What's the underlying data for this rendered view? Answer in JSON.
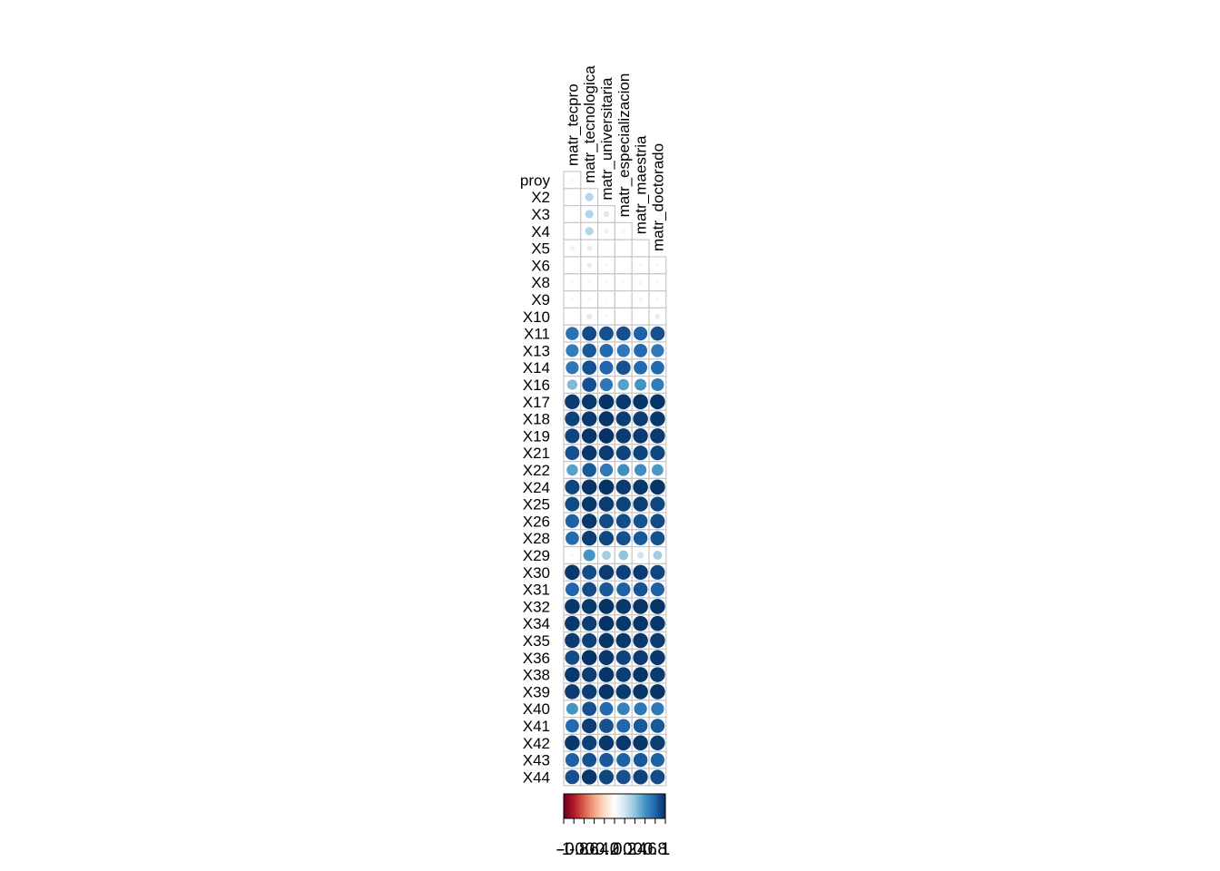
{
  "chart_data": {
    "type": "heatmap",
    "subtype": "correlation-circle",
    "columns": [
      "matr_tecpro",
      "matr_tecnologica",
      "matr_universitaria",
      "matr_especializacion",
      "matr_maestria",
      "matr_doctorado"
    ],
    "rows": [
      "proy",
      "X2",
      "X3",
      "X4",
      "X5",
      "X6",
      "X8",
      "X9",
      "X10",
      "X11",
      "X13",
      "X14",
      "X16",
      "X17",
      "X18",
      "X19",
      "X21",
      "X22",
      "X24",
      "X25",
      "X26",
      "X28",
      "X29",
      "X30",
      "X31",
      "X32",
      "X34",
      "X35",
      "X36",
      "X38",
      "X39",
      "X40",
      "X41",
      "X42",
      "X43",
      "X44"
    ],
    "triangle_rows": 5,
    "values": [
      [
        0.05,
        null,
        null,
        null,
        null,
        null
      ],
      [
        0.0,
        0.3,
        null,
        null,
        null,
        null
      ],
      [
        0.0,
        0.3,
        0.15,
        null,
        null,
        null
      ],
      [
        -0.02,
        0.3,
        0.1,
        0.08,
        null,
        null
      ],
      [
        -0.1,
        0.12,
        0.02,
        null,
        null,
        null
      ],
      [
        0.0,
        0.12,
        0.05,
        0.0,
        0.05,
        0.05
      ],
      [
        -0.05,
        -0.05,
        -0.05,
        -0.05,
        -0.08,
        -0.06
      ],
      [
        -0.06,
        -0.05,
        -0.04,
        0.0,
        -0.08,
        -0.06
      ],
      [
        0.0,
        0.15,
        0.06,
        0.0,
        0.0,
        0.12
      ],
      [
        0.75,
        0.9,
        0.88,
        0.88,
        0.82,
        0.88
      ],
      [
        0.7,
        0.85,
        0.78,
        0.72,
        0.78,
        0.72
      ],
      [
        0.72,
        0.88,
        0.8,
        0.88,
        0.78,
        0.78
      ],
      [
        0.45,
        0.88,
        0.72,
        0.55,
        0.6,
        0.7
      ],
      [
        0.96,
        0.97,
        0.99,
        0.97,
        0.98,
        0.98
      ],
      [
        0.93,
        0.97,
        0.98,
        0.95,
        0.96,
        0.97
      ],
      [
        0.92,
        0.98,
        0.99,
        0.96,
        0.96,
        0.96
      ],
      [
        0.88,
        0.97,
        0.96,
        0.93,
        0.93,
        0.92
      ],
      [
        0.55,
        0.85,
        0.72,
        0.62,
        0.62,
        0.58
      ],
      [
        0.92,
        0.98,
        0.99,
        0.96,
        0.97,
        0.98
      ],
      [
        0.9,
        0.97,
        0.96,
        0.93,
        0.95,
        0.92
      ],
      [
        0.82,
        0.97,
        0.9,
        0.9,
        0.87,
        0.9
      ],
      [
        0.78,
        0.95,
        0.92,
        0.88,
        0.85,
        0.88
      ],
      [
        0.05,
        0.6,
        0.35,
        0.4,
        0.2,
        0.35
      ],
      [
        0.97,
        0.9,
        0.96,
        0.94,
        0.96,
        0.92
      ],
      [
        0.8,
        0.9,
        0.85,
        0.82,
        0.87,
        0.82
      ],
      [
        0.97,
        0.97,
        0.99,
        0.97,
        0.98,
        0.98
      ],
      [
        0.97,
        0.95,
        0.99,
        0.97,
        0.98,
        0.97
      ],
      [
        0.96,
        0.94,
        0.98,
        0.97,
        0.97,
        0.96
      ],
      [
        0.9,
        0.99,
        0.97,
        0.93,
        0.96,
        0.97
      ],
      [
        0.97,
        0.95,
        0.98,
        0.95,
        0.98,
        0.96
      ],
      [
        0.96,
        0.95,
        0.98,
        0.96,
        0.98,
        0.98
      ],
      [
        0.6,
        0.88,
        0.78,
        0.68,
        0.72,
        0.72
      ],
      [
        0.78,
        0.95,
        0.88,
        0.8,
        0.85,
        0.85
      ],
      [
        0.97,
        0.94,
        0.97,
        0.97,
        0.97,
        0.95
      ],
      [
        0.82,
        0.88,
        0.85,
        0.82,
        0.85,
        0.82
      ],
      [
        0.88,
        0.97,
        0.92,
        0.88,
        0.93,
        0.9
      ]
    ],
    "colorbar": {
      "colors": [
        "#67001f",
        "#b2182b",
        "#d6604d",
        "#f4a582",
        "#fddbc7",
        "#ffffff",
        "#d1e5f0",
        "#92c5de",
        "#4393c3",
        "#2166ac",
        "#053061"
      ],
      "range": [
        -1,
        1
      ],
      "tick_labels": [
        "-1",
        "-0.8",
        "-0.6",
        "-0.4",
        "-0.2",
        "0",
        "0.2",
        "0.4",
        "0.6",
        "0.8",
        "1"
      ]
    },
    "grid": true,
    "legend": "bottom"
  }
}
